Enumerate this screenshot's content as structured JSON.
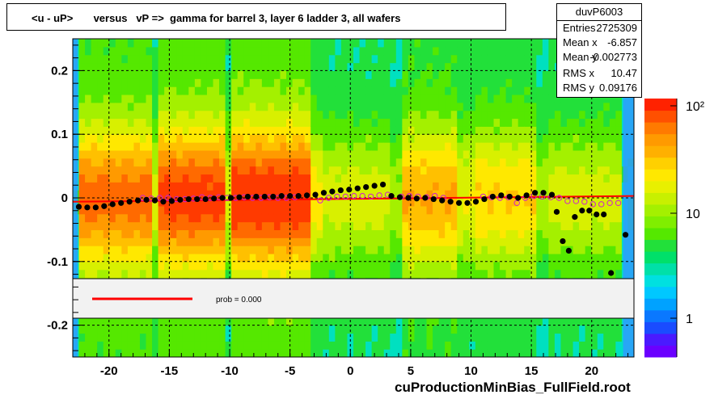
{
  "title": "<u - uP>       versus   vP =>  gamma for barrel 3, layer 6 ladder 3, all wafers",
  "footer": "cuProductionMinBias_FullField.root",
  "stats": {
    "name": "duvP6003",
    "rows": [
      {
        "label": "Entries",
        "value": "2725309"
      },
      {
        "label": "Mean x",
        "value": "-6.857"
      },
      {
        "label": "Mean y",
        "value": "-0.002773"
      },
      {
        "label": "RMS x",
        "value": "10.47"
      },
      {
        "label": "RMS y",
        "value": "0.09176"
      }
    ]
  },
  "legend": {
    "fit_label": "prob = 0.000",
    "fit_color": "#ff0000"
  },
  "chart_data": {
    "type": "heatmap",
    "xlim": [
      -23,
      23.5
    ],
    "ylim": [
      -0.25,
      0.25
    ],
    "x_ticks": [
      -20,
      -15,
      -10,
      -5,
      0,
      5,
      10,
      15,
      20
    ],
    "y_ticks": [
      -0.2,
      -0.1,
      0,
      0.1,
      0.2
    ],
    "x_tick_labels": [
      "-20",
      "-15",
      "-10",
      "-5",
      "0",
      "5",
      "10",
      "15",
      "20"
    ],
    "y_tick_labels": [
      "-0.2",
      "-0.1",
      "0",
      "0.1",
      "0.2"
    ],
    "z_scale": "log",
    "z_tick_labels": [
      "1",
      "10",
      "10²"
    ],
    "grid": true,
    "mean_points_filled": [
      [
        -22.5,
        -0.014
      ],
      [
        -21.8,
        -0.015
      ],
      [
        -21.1,
        -0.015
      ],
      [
        -20.4,
        -0.013
      ],
      [
        -19.7,
        -0.01
      ],
      [
        -19.0,
        -0.008
      ],
      [
        -18.3,
        -0.006
      ],
      [
        -17.6,
        -0.004
      ],
      [
        -16.9,
        -0.003
      ],
      [
        -16.2,
        -0.004
      ],
      [
        -15.5,
        -0.006
      ],
      [
        -14.8,
        -0.005
      ],
      [
        -14.1,
        -0.003
      ],
      [
        -13.4,
        -0.002
      ],
      [
        -12.7,
        -0.002
      ],
      [
        -12.0,
        -0.002
      ],
      [
        -11.3,
        -0.001
      ],
      [
        -10.6,
        0.0
      ],
      [
        -9.9,
        0.0
      ],
      [
        -9.2,
        0.001
      ],
      [
        -8.5,
        0.002
      ],
      [
        -7.8,
        0.002
      ],
      [
        -7.1,
        0.002
      ],
      [
        -6.4,
        0.002
      ],
      [
        -5.7,
        0.003
      ],
      [
        -5.0,
        0.003
      ],
      [
        -4.3,
        0.003
      ],
      [
        -3.6,
        0.004
      ],
      [
        -2.9,
        0.005
      ],
      [
        -2.2,
        0.008
      ],
      [
        -1.5,
        0.01
      ],
      [
        -0.8,
        0.012
      ],
      [
        -0.1,
        0.013
      ],
      [
        0.6,
        0.015
      ],
      [
        1.3,
        0.017
      ],
      [
        2.0,
        0.019
      ],
      [
        2.7,
        0.021
      ],
      [
        3.4,
        0.003
      ],
      [
        4.1,
        0.001
      ],
      [
        4.8,
        0.0
      ],
      [
        5.5,
        -0.001
      ],
      [
        6.2,
        0.0
      ],
      [
        6.9,
        -0.002
      ],
      [
        7.6,
        -0.004
      ],
      [
        8.3,
        -0.006
      ],
      [
        9.0,
        -0.008
      ],
      [
        9.7,
        -0.008
      ],
      [
        10.4,
        -0.006
      ],
      [
        11.1,
        -0.002
      ],
      [
        11.8,
        0.002
      ],
      [
        12.5,
        0.004
      ],
      [
        13.2,
        0.002
      ],
      [
        13.9,
        0.0
      ],
      [
        14.6,
        0.004
      ],
      [
        15.3,
        0.008
      ],
      [
        16.0,
        0.008
      ],
      [
        16.7,
        0.005
      ],
      [
        17.1,
        -0.022
      ],
      [
        17.6,
        -0.068
      ],
      [
        18.1,
        -0.083
      ],
      [
        18.6,
        -0.03
      ],
      [
        19.2,
        -0.02
      ],
      [
        19.8,
        -0.02
      ],
      [
        20.4,
        -0.026
      ],
      [
        21.0,
        -0.026
      ],
      [
        21.6,
        -0.118
      ],
      [
        22.8,
        -0.058
      ]
    ],
    "mean_points_open": [
      [
        -17.2,
        0.0
      ],
      [
        -16.5,
        -0.001
      ],
      [
        -15.8,
        0.0
      ],
      [
        -15.1,
        0.0
      ],
      [
        -14.4,
        -0.002
      ],
      [
        -13.7,
        -0.002
      ],
      [
        -13.0,
        -0.001
      ],
      [
        -12.3,
        0.001
      ],
      [
        -11.6,
        0.0
      ],
      [
        -10.9,
        0.001
      ],
      [
        -10.2,
        0.0
      ],
      [
        -9.5,
        0.0
      ],
      [
        -8.8,
        0.001
      ],
      [
        -8.1,
        0.0
      ],
      [
        -7.4,
        0.0
      ],
      [
        -6.7,
        0.001
      ],
      [
        -6.0,
        0.0
      ],
      [
        -5.3,
        0.0
      ],
      [
        -4.6,
        0.001
      ],
      [
        -2.5,
        -0.004
      ],
      [
        -1.8,
        0.0
      ],
      [
        -1.1,
        0.002
      ],
      [
        -0.4,
        0.002
      ],
      [
        0.3,
        0.003
      ],
      [
        1.0,
        0.003
      ],
      [
        1.7,
        0.002
      ],
      [
        2.4,
        0.004
      ],
      [
        3.1,
        0.005
      ],
      [
        4.2,
        0.002
      ],
      [
        4.9,
        0.003
      ],
      [
        5.6,
        0.002
      ],
      [
        6.3,
        0.001
      ],
      [
        7.0,
        0.003
      ],
      [
        7.7,
        0.0
      ],
      [
        11.0,
        0.002
      ],
      [
        11.7,
        0.001
      ],
      [
        12.4,
        0.0
      ],
      [
        13.1,
        0.001
      ],
      [
        13.8,
        -0.008
      ],
      [
        14.5,
        0.0
      ],
      [
        15.2,
        0.003
      ],
      [
        15.9,
        0.002
      ],
      [
        16.6,
        0.001
      ],
      [
        17.3,
        0.0
      ],
      [
        18.0,
        -0.005
      ],
      [
        18.7,
        -0.005
      ],
      [
        19.4,
        -0.006
      ],
      [
        20.1,
        -0.01
      ],
      [
        20.8,
        -0.01
      ],
      [
        21.5,
        -0.008
      ],
      [
        22.2,
        -0.008
      ]
    ],
    "fit_line": [
      [
        -23,
        -0.006
      ],
      [
        23.5,
        0.003
      ]
    ]
  }
}
